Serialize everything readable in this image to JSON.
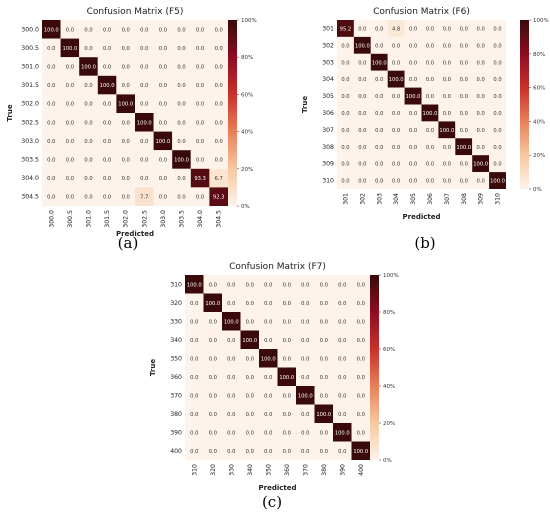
{
  "panels": [
    {
      "caption": "(a)",
      "chart_data": {
        "type": "heatmap",
        "title": "Confusion Matrix (F5)",
        "xlabel": "Predicted",
        "ylabel": "True",
        "x_categories": [
          "300.0",
          "300.5",
          "301.0",
          "301.5",
          "302.0",
          "302.5",
          "303.0",
          "303.5",
          "304.0",
          "304.5"
        ],
        "y_categories": [
          "300.0",
          "300.5",
          "301.0",
          "301.5",
          "302.0",
          "302.5",
          "303.0",
          "303.5",
          "304.0",
          "304.5"
        ],
        "values": [
          [
            100.0,
            0.0,
            0.0,
            0.0,
            0.0,
            0.0,
            0.0,
            0.0,
            0.0,
            0.0
          ],
          [
            0.0,
            100.0,
            0.0,
            0.0,
            0.0,
            0.0,
            0.0,
            0.0,
            0.0,
            0.0
          ],
          [
            0.0,
            0.0,
            100.0,
            0.0,
            0.0,
            0.0,
            0.0,
            0.0,
            0.0,
            0.0
          ],
          [
            0.0,
            0.0,
            0.0,
            100.0,
            0.0,
            0.0,
            0.0,
            0.0,
            0.0,
            0.0
          ],
          [
            0.0,
            0.0,
            0.0,
            0.0,
            100.0,
            0.0,
            0.0,
            0.0,
            0.0,
            0.0
          ],
          [
            0.0,
            0.0,
            0.0,
            0.0,
            0.0,
            100.0,
            0.0,
            0.0,
            0.0,
            0.0
          ],
          [
            0.0,
            0.0,
            0.0,
            0.0,
            0.0,
            0.0,
            100.0,
            0.0,
            0.0,
            0.0
          ],
          [
            0.0,
            0.0,
            0.0,
            0.0,
            0.0,
            0.0,
            0.0,
            100.0,
            0.0,
            0.0
          ],
          [
            0.0,
            0.0,
            0.0,
            0.0,
            0.0,
            0.0,
            0.0,
            0.0,
            93.3,
            6.7
          ],
          [
            0.0,
            0.0,
            0.0,
            0.0,
            0.0,
            7.7,
            0.0,
            0.0,
            0.0,
            92.3
          ]
        ],
        "colorbar": {
          "ticks": [
            "0%",
            "20%",
            "40%",
            "60%",
            "80%",
            "100%"
          ],
          "range": [
            0,
            100
          ]
        }
      }
    },
    {
      "caption": "(b)",
      "chart_data": {
        "type": "heatmap",
        "title": "Confusion Matrix (F6)",
        "xlabel": "Predicted",
        "ylabel": "True",
        "x_categories": [
          "301",
          "302",
          "303",
          "304",
          "305",
          "306",
          "307",
          "308",
          "309",
          "310"
        ],
        "y_categories": [
          "301",
          "302",
          "303",
          "304",
          "305",
          "306",
          "307",
          "308",
          "309",
          "310"
        ],
        "values": [
          [
            95.2,
            0.0,
            0.0,
            4.8,
            0.0,
            0.0,
            0.0,
            0.0,
            0.0,
            0.0
          ],
          [
            0.0,
            100.0,
            0.0,
            0.0,
            0.0,
            0.0,
            0.0,
            0.0,
            0.0,
            0.0
          ],
          [
            0.0,
            0.0,
            100.0,
            0.0,
            0.0,
            0.0,
            0.0,
            0.0,
            0.0,
            0.0
          ],
          [
            0.0,
            0.0,
            0.0,
            100.0,
            0.0,
            0.0,
            0.0,
            0.0,
            0.0,
            0.0
          ],
          [
            0.0,
            0.0,
            0.0,
            0.0,
            100.0,
            0.0,
            0.0,
            0.0,
            0.0,
            0.0
          ],
          [
            0.0,
            0.0,
            0.0,
            0.0,
            0.0,
            100.0,
            0.0,
            0.0,
            0.0,
            0.0
          ],
          [
            0.0,
            0.0,
            0.0,
            0.0,
            0.0,
            0.0,
            100.0,
            0.0,
            0.0,
            0.0
          ],
          [
            0.0,
            0.0,
            0.0,
            0.0,
            0.0,
            0.0,
            0.0,
            100.0,
            0.0,
            0.0
          ],
          [
            0.0,
            0.0,
            0.0,
            0.0,
            0.0,
            0.0,
            0.0,
            0.0,
            100.0,
            0.0
          ],
          [
            0.0,
            0.0,
            0.0,
            0.0,
            0.0,
            0.0,
            0.0,
            0.0,
            0.0,
            100.0
          ]
        ],
        "colorbar": {
          "ticks": [
            "0%",
            "20%",
            "40%",
            "60%",
            "80%",
            "100%"
          ],
          "range": [
            0,
            100
          ]
        }
      }
    },
    {
      "caption": "(c)",
      "chart_data": {
        "type": "heatmap",
        "title": "Confusion Matrix (F7)",
        "xlabel": "Predicted",
        "ylabel": "True",
        "x_categories": [
          "310",
          "320",
          "330",
          "340",
          "350",
          "360",
          "370",
          "380",
          "390",
          "400"
        ],
        "y_categories": [
          "310",
          "320",
          "330",
          "340",
          "350",
          "360",
          "370",
          "380",
          "390",
          "400"
        ],
        "values": [
          [
            100.0,
            0.0,
            0.0,
            0.0,
            0.0,
            0.0,
            0.0,
            0.0,
            0.0,
            0.0
          ],
          [
            0.0,
            100.0,
            0.0,
            0.0,
            0.0,
            0.0,
            0.0,
            0.0,
            0.0,
            0.0
          ],
          [
            0.0,
            0.0,
            100.0,
            0.0,
            0.0,
            0.0,
            0.0,
            0.0,
            0.0,
            0.0
          ],
          [
            0.0,
            0.0,
            0.0,
            100.0,
            0.0,
            0.0,
            0.0,
            0.0,
            0.0,
            0.0
          ],
          [
            0.0,
            0.0,
            0.0,
            0.0,
            100.0,
            0.0,
            0.0,
            0.0,
            0.0,
            0.0
          ],
          [
            0.0,
            0.0,
            0.0,
            0.0,
            0.0,
            100.0,
            0.0,
            0.0,
            0.0,
            0.0
          ],
          [
            0.0,
            0.0,
            0.0,
            0.0,
            0.0,
            0.0,
            100.0,
            0.0,
            0.0,
            0.0
          ],
          [
            0.0,
            0.0,
            0.0,
            0.0,
            0.0,
            0.0,
            0.0,
            100.0,
            0.0,
            0.0
          ],
          [
            0.0,
            0.0,
            0.0,
            0.0,
            0.0,
            0.0,
            0.0,
            0.0,
            100.0,
            0.0
          ],
          [
            0.0,
            0.0,
            0.0,
            0.0,
            0.0,
            0.0,
            0.0,
            0.0,
            0.0,
            100.0
          ]
        ],
        "colorbar": {
          "ticks": [
            "0%",
            "20%",
            "40%",
            "60%",
            "80%",
            "100%"
          ],
          "range": [
            0,
            100
          ]
        }
      }
    }
  ],
  "colormap": [
    "#fdf3ea",
    "#f6c8a0",
    "#e88059",
    "#c8302b",
    "#8c0d22",
    "#3a0a0a"
  ]
}
